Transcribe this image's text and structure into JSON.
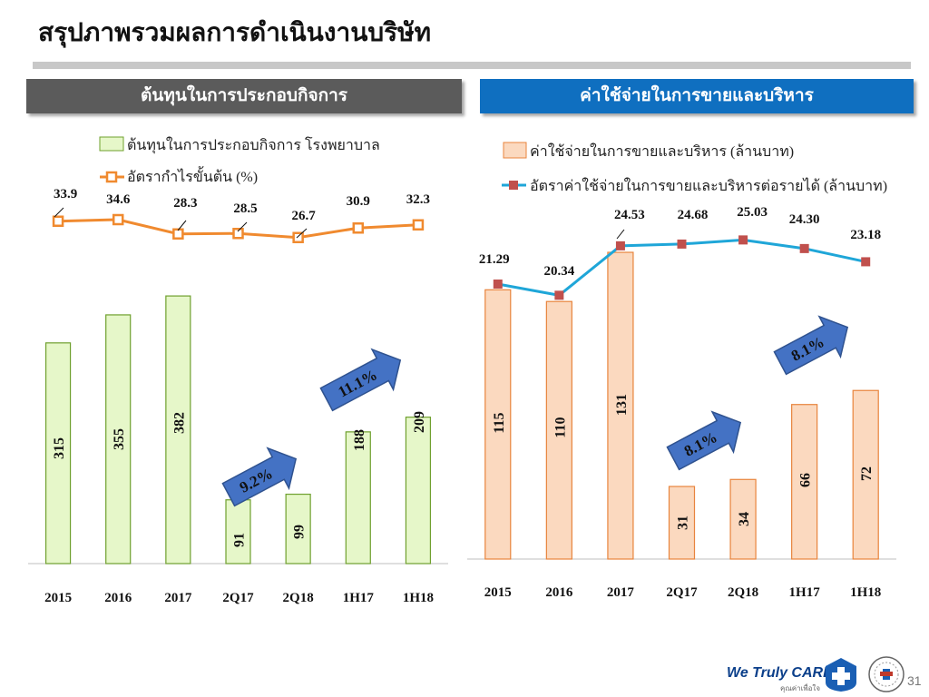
{
  "title": "สรุปภาพรวมผลการดำเนินงานบริษัท",
  "panels": {
    "left_header": "ต้นทุนในการประกอบกิจการ",
    "right_header": "ค่าใช้จ่ายในการขายและบริหาร"
  },
  "colors": {
    "left_bar_fill": "#e6f7c9",
    "left_bar_stroke": "#6fa02e",
    "left_line": "#f08a2f",
    "right_bar_fill": "#fbd9bf",
    "right_bar_stroke": "#e8843c",
    "right_line": "#1fa6d8",
    "right_marker": "#c0504d",
    "arrow": "#4472c4"
  },
  "chart_data": [
    {
      "type": "bar",
      "categories": [
        "2015",
        "2016",
        "2017",
        "2Q17",
        "2Q18",
        "1H17",
        "1H18"
      ],
      "series": [
        {
          "name": "ต้นทุนในการประกอบกิจการ โรงพยาบาล",
          "type": "bar",
          "values": [
            315,
            355,
            382,
            91,
            99,
            188,
            209
          ]
        },
        {
          "name": "อัตรากำไรขั้นต้น (%)",
          "type": "line",
          "values": [
            33.9,
            34.6,
            28.3,
            28.5,
            26.7,
            30.9,
            32.3
          ]
        }
      ],
      "annotations": [
        "9.2%",
        "11.1%"
      ]
    },
    {
      "type": "bar",
      "categories": [
        "2015",
        "2016",
        "2017",
        "2Q17",
        "2Q18",
        "1H17",
        "1H18"
      ],
      "series": [
        {
          "name": "ค่าใช้จ่ายในการขายและบริหาร (ล้านบาท)",
          "type": "bar",
          "values": [
            115,
            110,
            131,
            31,
            34,
            66,
            72
          ]
        },
        {
          "name": "อัตราค่าใช้จ่ายในการขายและบริหารต่อรายได้ (ล้านบาท)",
          "type": "line",
          "values": [
            21.29,
            20.34,
            24.53,
            24.68,
            25.03,
            24.3,
            23.18
          ]
        }
      ],
      "annotations": [
        "8.1%",
        "8.1%"
      ]
    }
  ],
  "footer": {
    "logo_text": "We Truly CARE",
    "logo_sub": "คุณค่าเพื่อใจ",
    "page_number": "31"
  }
}
